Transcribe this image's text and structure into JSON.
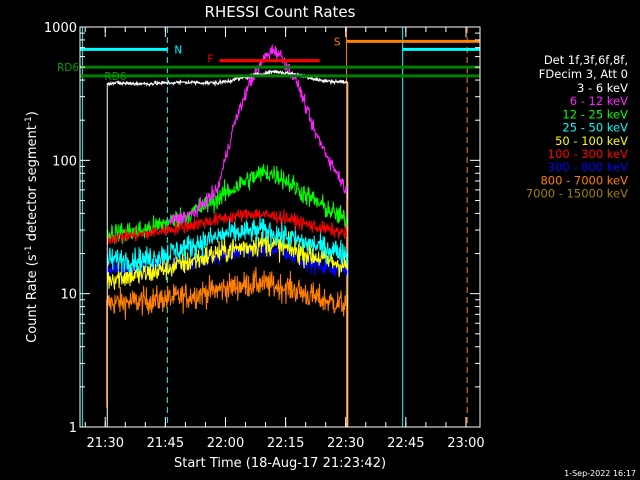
{
  "chart_data": {
    "type": "line",
    "title": "RHESSI Count Rates",
    "xlabel": "Start Time (18-Aug-17 21:23:42)",
    "ylabel": "Count Rate (s",
    "ylabel_sup": "-1",
    "ylabel_rest": " detector segment",
    "ylabel_sup2": "-1",
    "ylabel_end": ")",
    "yscale": "log",
    "ylim": [
      1,
      1000
    ],
    "xlim_min": [
      1283.7,
      1383.5
    ],
    "x_ticks": [
      {
        "value": 1290,
        "label": "21:30"
      },
      {
        "value": 1305,
        "label": "21:45"
      },
      {
        "value": 1320,
        "label": "22:00"
      },
      {
        "value": 1335,
        "label": "22:15"
      },
      {
        "value": 1350,
        "label": "22:30"
      },
      {
        "value": 1365,
        "label": "22:45"
      },
      {
        "value": 1380,
        "label": "23:00"
      }
    ],
    "y_ticks": [
      {
        "value": 1,
        "label": "1"
      },
      {
        "value": 10,
        "label": "10"
      },
      {
        "value": 100,
        "label": "100"
      },
      {
        "value": 1000,
        "label": "1000"
      }
    ],
    "legend": {
      "header1": "Det 1f,3f,6f,8f,",
      "header2": "FDecim 3, Att 0"
    },
    "data_window": [
      1290.5,
      1350.5
    ],
    "series": [
      {
        "name": "3 - 6 keV",
        "color": "#ffffff",
        "baseline": [
          [
            1290.5,
            380
          ],
          [
            1300,
            375
          ],
          [
            1310,
            385
          ],
          [
            1318,
            380
          ],
          [
            1325,
            420
          ],
          [
            1332,
            465
          ],
          [
            1338,
            440
          ],
          [
            1344,
            395
          ],
          [
            1350.5,
            385
          ]
        ],
        "noise": 0.015
      },
      {
        "name": "6 - 12 keV",
        "color": "#ff22ff",
        "baseline": [
          [
            1306,
            35
          ],
          [
            1312,
            40
          ],
          [
            1318,
            60
          ],
          [
            1322,
            180
          ],
          [
            1326,
            380
          ],
          [
            1330,
            600
          ],
          [
            1332,
            680
          ],
          [
            1334,
            600
          ],
          [
            1338,
            380
          ],
          [
            1342,
            170
          ],
          [
            1346,
            100
          ],
          [
            1349,
            70
          ],
          [
            1350.5,
            55
          ]
        ],
        "noise": 0.05
      },
      {
        "name": "12 - 25 keV",
        "color": "#00ff00",
        "baseline": [
          [
            1290.5,
            28
          ],
          [
            1300,
            30
          ],
          [
            1310,
            38
          ],
          [
            1318,
            52
          ],
          [
            1325,
            70
          ],
          [
            1330,
            82
          ],
          [
            1334,
            75
          ],
          [
            1340,
            55
          ],
          [
            1346,
            42
          ],
          [
            1350.5,
            35
          ]
        ],
        "noise": 0.08
      },
      {
        "name": "25 - 50 keV",
        "color": "#00ffff",
        "baseline": [
          [
            1290.5,
            18
          ],
          [
            1300,
            18
          ],
          [
            1310,
            22
          ],
          [
            1320,
            28
          ],
          [
            1330,
            30
          ],
          [
            1340,
            24
          ],
          [
            1350.5,
            20
          ]
        ],
        "noise": 0.09
      },
      {
        "name": "50 - 100 keV",
        "color": "#ffff00",
        "baseline": [
          [
            1290.5,
            13
          ],
          [
            1300,
            14
          ],
          [
            1310,
            17
          ],
          [
            1320,
            21
          ],
          [
            1330,
            24
          ],
          [
            1340,
            20
          ],
          [
            1350.5,
            16
          ]
        ],
        "noise": 0.09
      },
      {
        "name": "100 - 300 keV",
        "color": "#ff0000",
        "baseline": [
          [
            1290.5,
            26
          ],
          [
            1300,
            28
          ],
          [
            1310,
            32
          ],
          [
            1320,
            37
          ],
          [
            1327,
            40
          ],
          [
            1335,
            37
          ],
          [
            1342,
            32
          ],
          [
            1350.5,
            28
          ]
        ],
        "noise": 0.05
      },
      {
        "name": "300 - 800 keV",
        "color": "#0000ff",
        "baseline": [
          [
            1290.5,
            15
          ],
          [
            1300,
            15
          ],
          [
            1310,
            17
          ],
          [
            1320,
            20
          ],
          [
            1328,
            22
          ],
          [
            1336,
            20
          ],
          [
            1344,
            16
          ],
          [
            1350.5,
            15
          ]
        ],
        "noise": 0.07
      },
      {
        "name": "800 - 7000 keV",
        "color": "#ff7f00",
        "baseline": [
          [
            1290.5,
            8.5
          ],
          [
            1300,
            8.8
          ],
          [
            1310,
            9.5
          ],
          [
            1320,
            11
          ],
          [
            1328,
            12
          ],
          [
            1336,
            11
          ],
          [
            1344,
            9
          ],
          [
            1350.5,
            8.2
          ]
        ],
        "noise": 0.1
      },
      {
        "name": "7000 - 15000 keV",
        "color": "#a08000",
        "baseline": [],
        "noise": 0
      }
    ],
    "annotations": {
      "n_label": "N",
      "f_label": "F",
      "s_label": "S",
      "rd6_label_a": "RD6",
      "rd6_label_b": "RD6",
      "flag_bars": [
        {
          "name": "N",
          "color": "#00ffff",
          "x": [
            1283.7,
            1305.5
          ],
          "y": 680
        },
        {
          "name": "N",
          "color": "#00ffff",
          "x": [
            1364.2,
            1383.5
          ],
          "y": 680
        },
        {
          "name": "S",
          "color": "#ff7f00",
          "x": [
            1350.2,
            1383.5
          ],
          "y": 780
        },
        {
          "name": "F",
          "color": "#ff0000",
          "x": [
            1318.5,
            1343.5
          ],
          "y": 560
        },
        {
          "name": "RD6",
          "color": "#008000",
          "x": [
            1283.7,
            1383.5
          ],
          "y": 500
        },
        {
          "name": "RD6",
          "color": "#008000",
          "x": [
            1283.7,
            1383.5
          ],
          "y": 430
        }
      ],
      "vertical_lines": [
        {
          "color": "#00ffff",
          "x": 1284.3,
          "style": "solid"
        },
        {
          "color": "#00ffff",
          "x": 1305.5,
          "style": "dashed"
        },
        {
          "color": "#00ffff",
          "x": 1364.2,
          "style": "solid"
        },
        {
          "color": "#ff7f00",
          "x": 1350.2,
          "style": "solid"
        },
        {
          "color": "#ff7f00",
          "x": 1380.3,
          "style": "dashed"
        }
      ]
    },
    "footer_date": "1-Sep-2022 16:17"
  }
}
